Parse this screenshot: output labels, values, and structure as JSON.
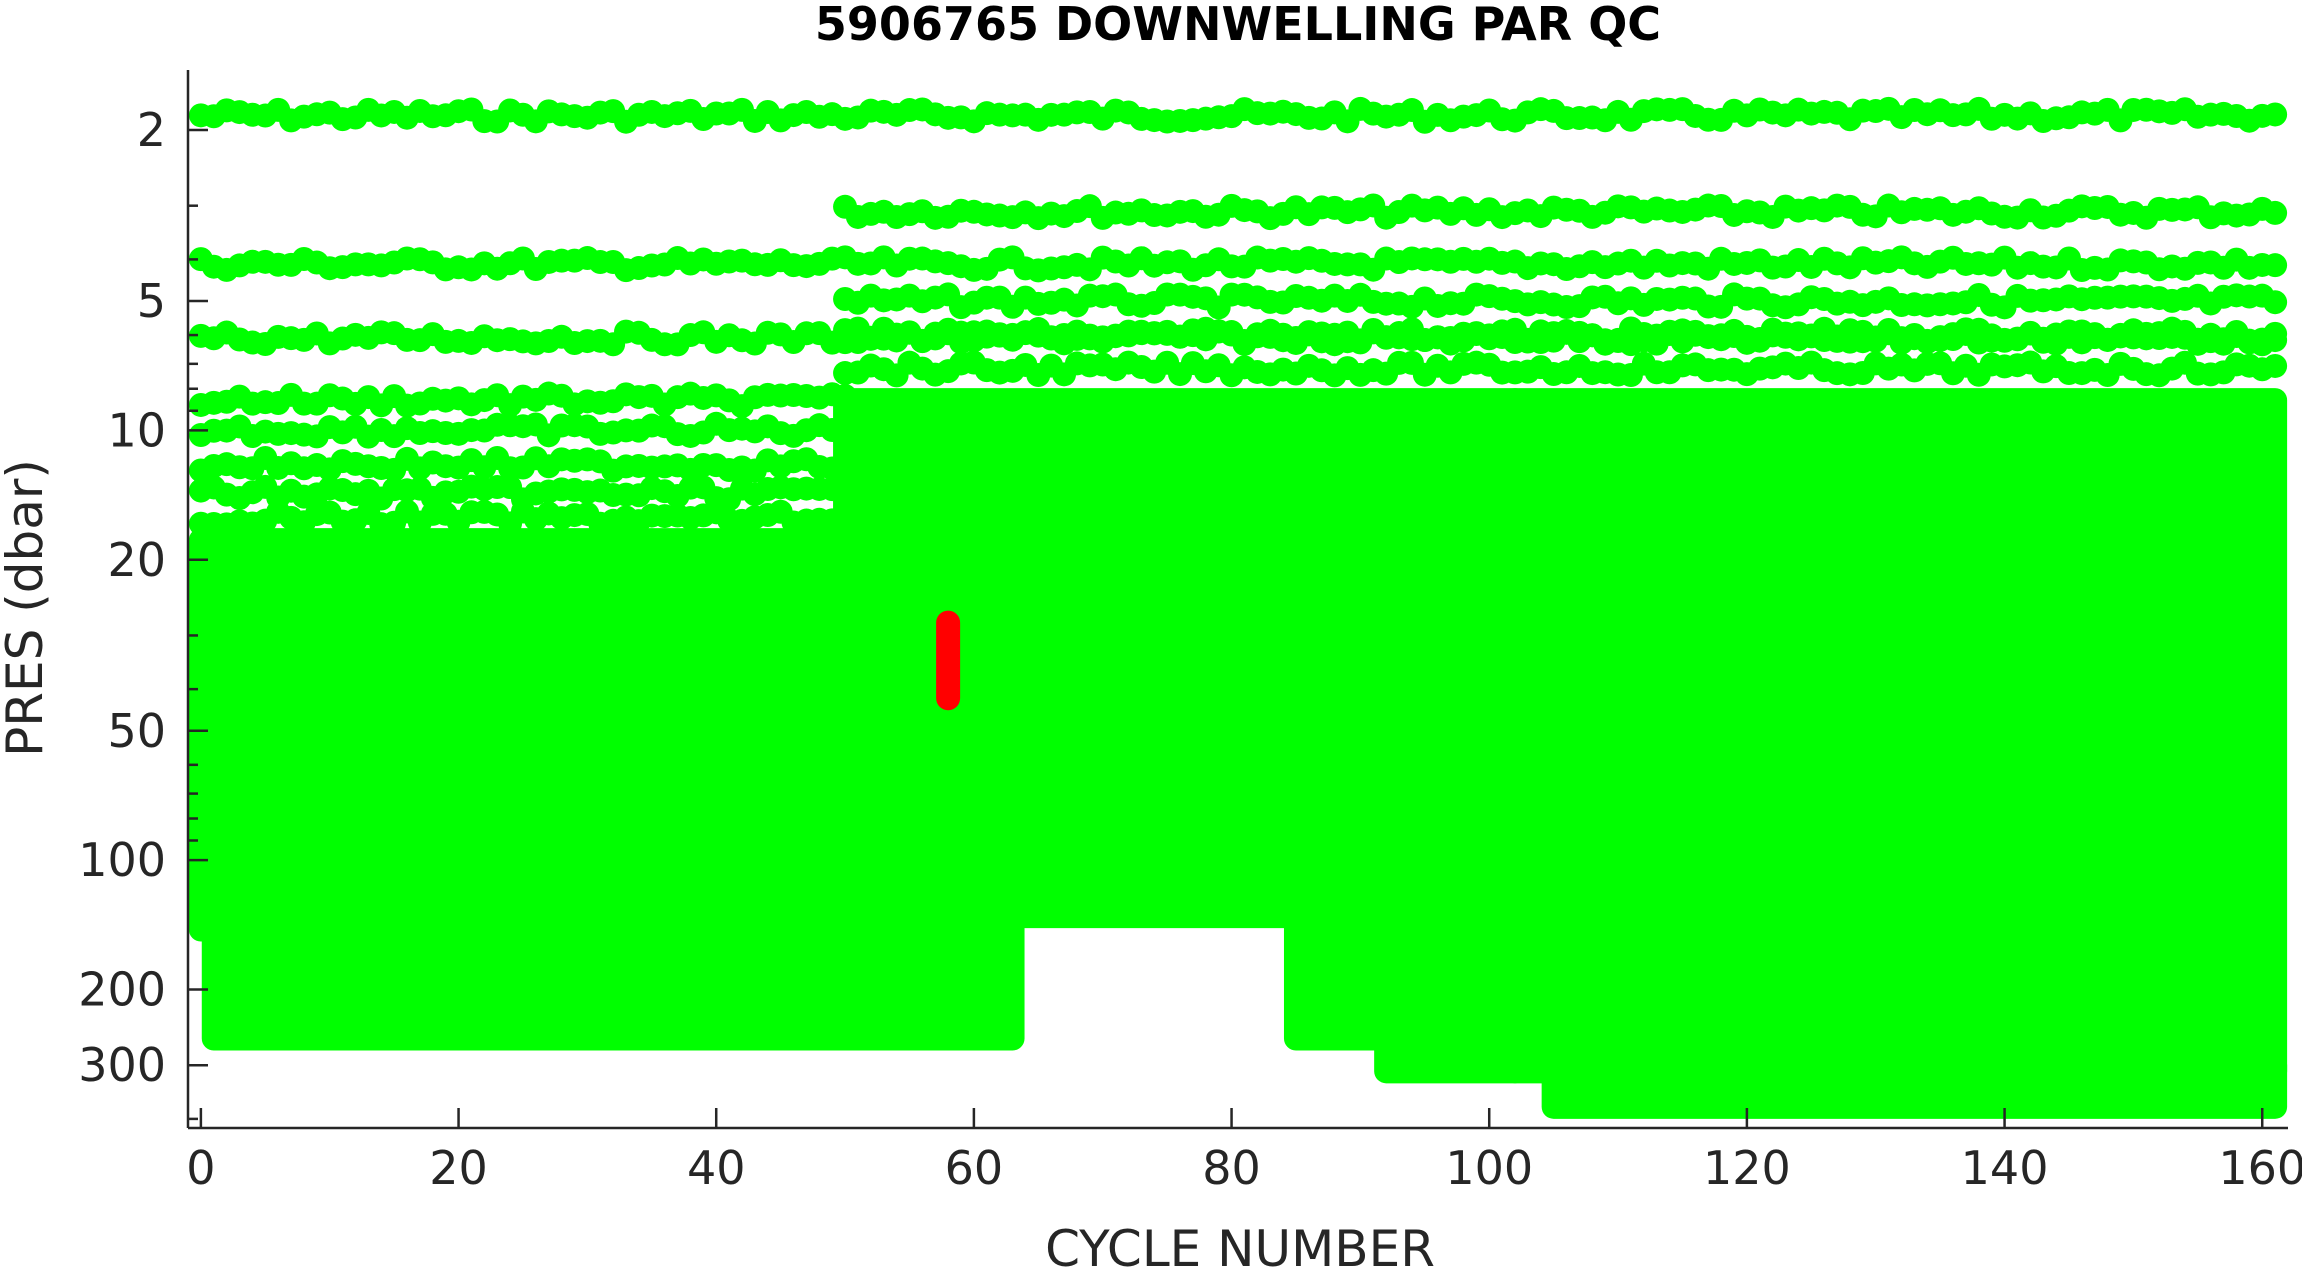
{
  "chart_data": {
    "type": "scatter",
    "title": "5906765  DOWNWELLING PAR QC",
    "xlabel": "CYCLE NUMBER",
    "ylabel": "PRES (dbar)",
    "xlim": [
      -1,
      162
    ],
    "ylim": [
      1.45,
      420
    ],
    "y_scale": "log",
    "y_reversed": true,
    "grid": false,
    "x_ticks": [
      0,
      20,
      40,
      60,
      80,
      100,
      120,
      140,
      160
    ],
    "x_tick_labels": [
      "0",
      "20",
      "40",
      "60",
      "80",
      "100",
      "120",
      "140",
      "160"
    ],
    "y_ticks": [
      2,
      5,
      10,
      20,
      50,
      100,
      200,
      300
    ],
    "y_tick_labels": [
      "2",
      "5",
      "10",
      "20",
      "50",
      "100",
      "200",
      "300"
    ],
    "series": [
      {
        "qc_flag": "good",
        "color": "#00ff00",
        "discrete_levels": [
          {
            "x_range": [
              0,
              161
            ],
            "pres": 1.85
          },
          {
            "x_range": [
              50,
              161
            ],
            "pres": 3.1
          },
          {
            "x_range": [
              0,
              161
            ],
            "pres": 4.1
          },
          {
            "x_range": [
              50,
              161
            ],
            "pres": 5.0
          },
          {
            "x_range": [
              0,
              161
            ],
            "pres": 6.1
          },
          {
            "x_range": [
              50,
              161
            ],
            "pres": 6.0
          },
          {
            "x_range": [
              50,
              161
            ],
            "pres": 7.2
          },
          {
            "x_range": [
              0,
              50
            ],
            "pres": 8.5
          },
          {
            "x_range": [
              0,
              50
            ],
            "pres": 10.0
          },
          {
            "x_range": [
              0,
              50
            ],
            "pres": 12.0
          },
          {
            "x_range": [
              0,
              50
            ],
            "pres": 14.0
          },
          {
            "x_range": [
              0,
              50
            ],
            "pres": 16.0
          }
        ],
        "dense_profiles": [
          {
            "x_range": [
              0,
              1
            ],
            "pres_range": [
              18,
              145
            ]
          },
          {
            "x_range": [
              1,
              63
            ],
            "pres_range": [
              18,
              260
            ]
          },
          {
            "x_range": [
              50,
              102
            ],
            "pres_range": [
              8.5,
              135
            ]
          },
          {
            "x_range": [
              85,
              92
            ],
            "pres_range": [
              135,
              260
            ]
          },
          {
            "x_range": [
              92,
              102
            ],
            "pres_range": [
              135,
              310
            ]
          },
          {
            "x_range": [
              102,
              161
            ],
            "pres_range": [
              8.5,
              310
            ]
          },
          {
            "x_range": [
              105,
              161
            ],
            "pres_range": [
              300,
              375
            ]
          }
        ]
      },
      {
        "qc_flag": "bad",
        "color": "#ff0000",
        "points": [
          {
            "x": 58,
            "pres_range": [
              28,
              42
            ]
          }
        ]
      }
    ]
  }
}
